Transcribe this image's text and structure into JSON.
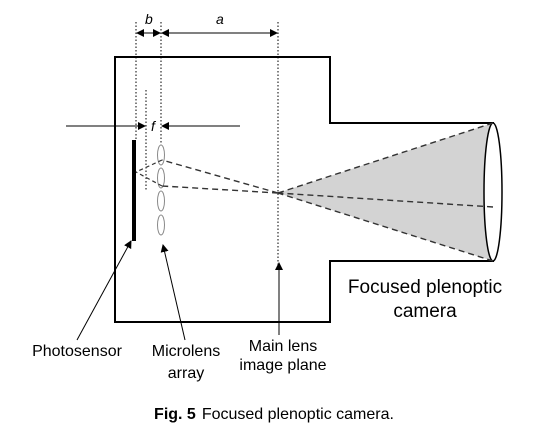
{
  "dimensions": {
    "b": "b",
    "a": "a",
    "f": "f"
  },
  "labels": {
    "camera_title_line1": "Focused plenoptic",
    "camera_title_line2": "camera",
    "photosensor": "Photosensor",
    "microlens_line1": "Microlens",
    "microlens_line2": "array",
    "mainlens_line1": "Main lens",
    "mainlens_line2": "image plane"
  },
  "caption": {
    "fig": "Fig. 5",
    "text": "Focused plenoptic camera."
  }
}
